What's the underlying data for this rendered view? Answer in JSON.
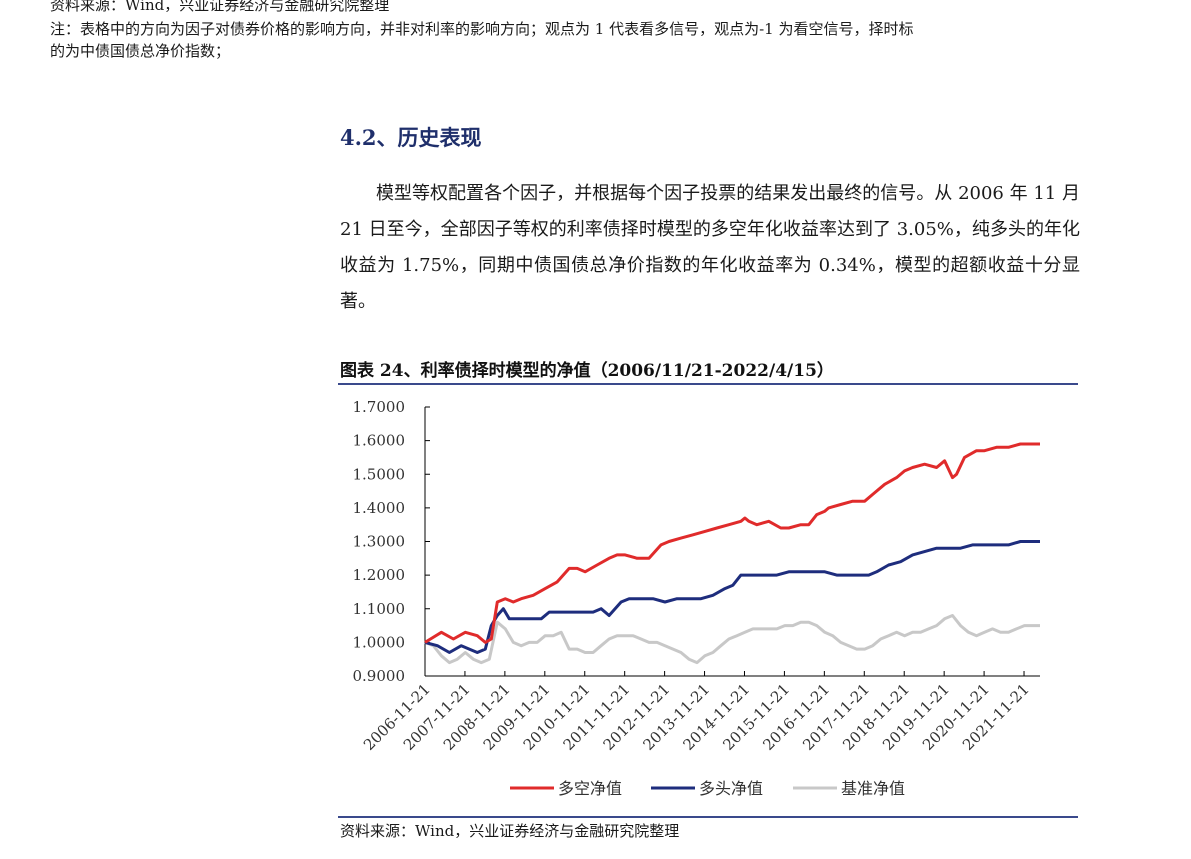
{
  "header": {
    "source_line": "资料来源：Wind，兴业证券经济与金融研究院整理",
    "note_line1": "注：表格中的方向为因子对债券价格的影响方向，并非对利率的影响方向；观点为 1 代表看多信号，观点为-1 为看空信号，择时标",
    "note_line2": "的为中债国债总净价指数；"
  },
  "section": {
    "title": "4.2、历史表现",
    "paragraph": "模型等权配置各个因子，并根据每个因子投票的结果发出最终的信号。从 2006 年 11 月 21 日至今，全部因子等权的利率债择时模型的多空年化收益率达到了 3.05%，纯多头的年化收益为 1.75%，同期中债国债总净价指数的年化收益率为 0.34%，模型的超额收益十分显著。"
  },
  "figure": {
    "title": "图表 24、利率债择时模型的净值（2006/11/21-2022/4/15）",
    "source": "资料来源：Wind，兴业证券经济与金融研究院整理"
  },
  "chart_data": {
    "type": "line",
    "title": "",
    "xlabel": "",
    "ylabel": "",
    "ylim": [
      0.9,
      1.7
    ],
    "y_ticks": [
      "0.9000",
      "1.0000",
      "1.1000",
      "1.2000",
      "1.3000",
      "1.4000",
      "1.5000",
      "1.6000",
      "1.7000"
    ],
    "x_ticks": [
      "2006-11-21",
      "2007-11-21",
      "2008-11-21",
      "2009-11-21",
      "2010-11-21",
      "2011-11-21",
      "2012-11-21",
      "2013-11-21",
      "2014-11-21",
      "2015-11-21",
      "2016-11-21",
      "2017-11-21",
      "2018-11-21",
      "2019-11-21",
      "2020-11-21",
      "2021-11-21"
    ],
    "x_range": [
      2006.89,
      2022.29
    ],
    "grid": false,
    "legend": "bottom",
    "series": [
      {
        "name": "多空净值",
        "color": "#e02b2b",
        "x": [
          2006.89,
          2007.3,
          2007.6,
          2007.9,
          2008.2,
          2008.4,
          2008.55,
          2008.7,
          2008.9,
          2009.1,
          2009.3,
          2009.6,
          2009.9,
          2010.2,
          2010.5,
          2010.7,
          2010.9,
          2011.2,
          2011.5,
          2011.7,
          2011.9,
          2012.2,
          2012.5,
          2012.8,
          2013.0,
          2013.3,
          2013.6,
          2013.9,
          2014.2,
          2014.5,
          2014.8,
          2014.9,
          2015.0,
          2015.2,
          2015.5,
          2015.8,
          2016.0,
          2016.3,
          2016.5,
          2016.7,
          2016.9,
          2017.0,
          2017.3,
          2017.6,
          2017.9,
          2018.1,
          2018.4,
          2018.7,
          2018.9,
          2019.1,
          2019.4,
          2019.7,
          2019.9,
          2020.1,
          2020.2,
          2020.4,
          2020.7,
          2020.9,
          2021.2,
          2021.5,
          2021.8,
          2022.1,
          2022.29
        ],
        "values": [
          1.0,
          1.03,
          1.01,
          1.03,
          1.02,
          1.0,
          1.01,
          1.12,
          1.13,
          1.12,
          1.13,
          1.14,
          1.16,
          1.18,
          1.22,
          1.22,
          1.21,
          1.23,
          1.25,
          1.26,
          1.26,
          1.25,
          1.25,
          1.29,
          1.3,
          1.31,
          1.32,
          1.33,
          1.34,
          1.35,
          1.36,
          1.37,
          1.36,
          1.35,
          1.36,
          1.34,
          1.34,
          1.35,
          1.35,
          1.38,
          1.39,
          1.4,
          1.41,
          1.42,
          1.42,
          1.44,
          1.47,
          1.49,
          1.51,
          1.52,
          1.53,
          1.52,
          1.54,
          1.49,
          1.5,
          1.55,
          1.57,
          1.57,
          1.58,
          1.58,
          1.59,
          1.59,
          1.59
        ]
      },
      {
        "name": "多头净值",
        "color": "#1e2d7d",
        "x": [
          2006.89,
          2007.2,
          2007.5,
          2007.8,
          2008.0,
          2008.2,
          2008.4,
          2008.55,
          2008.7,
          2008.85,
          2009.0,
          2009.2,
          2009.5,
          2009.8,
          2010.0,
          2010.3,
          2010.6,
          2010.9,
          2011.1,
          2011.3,
          2011.5,
          2011.8,
          2012.0,
          2012.3,
          2012.6,
          2012.9,
          2013.2,
          2013.5,
          2013.8,
          2014.1,
          2014.4,
          2014.6,
          2014.8,
          2015.1,
          2015.4,
          2015.7,
          2016.0,
          2016.3,
          2016.6,
          2016.9,
          2017.2,
          2017.5,
          2017.8,
          2018.0,
          2018.2,
          2018.5,
          2018.8,
          2019.1,
          2019.4,
          2019.7,
          2020.0,
          2020.3,
          2020.6,
          2020.9,
          2021.2,
          2021.5,
          2021.8,
          2022.1,
          2022.29
        ],
        "values": [
          1.0,
          0.99,
          0.97,
          0.99,
          0.98,
          0.97,
          0.98,
          1.05,
          1.08,
          1.1,
          1.07,
          1.07,
          1.07,
          1.07,
          1.09,
          1.09,
          1.09,
          1.09,
          1.09,
          1.1,
          1.08,
          1.12,
          1.13,
          1.13,
          1.13,
          1.12,
          1.13,
          1.13,
          1.13,
          1.14,
          1.16,
          1.17,
          1.2,
          1.2,
          1.2,
          1.2,
          1.21,
          1.21,
          1.21,
          1.21,
          1.2,
          1.2,
          1.2,
          1.2,
          1.21,
          1.23,
          1.24,
          1.26,
          1.27,
          1.28,
          1.28,
          1.28,
          1.29,
          1.29,
          1.29,
          1.29,
          1.3,
          1.3,
          1.3
        ]
      },
      {
        "name": "基准净值",
        "color": "#c8c8c8",
        "x": [
          2006.89,
          2007.1,
          2007.3,
          2007.5,
          2007.7,
          2007.9,
          2008.1,
          2008.3,
          2008.5,
          2008.7,
          2008.9,
          2009.1,
          2009.3,
          2009.5,
          2009.7,
          2009.9,
          2010.1,
          2010.3,
          2010.5,
          2010.7,
          2010.9,
          2011.1,
          2011.3,
          2011.5,
          2011.7,
          2011.9,
          2012.1,
          2012.3,
          2012.5,
          2012.7,
          2012.9,
          2013.1,
          2013.3,
          2013.5,
          2013.7,
          2013.9,
          2014.1,
          2014.3,
          2014.5,
          2014.7,
          2014.9,
          2015.1,
          2015.3,
          2015.5,
          2015.7,
          2015.9,
          2016.1,
          2016.3,
          2016.5,
          2016.7,
          2016.9,
          2017.1,
          2017.3,
          2017.5,
          2017.7,
          2017.9,
          2018.1,
          2018.3,
          2018.5,
          2018.7,
          2018.9,
          2019.1,
          2019.3,
          2019.5,
          2019.7,
          2019.9,
          2020.1,
          2020.3,
          2020.5,
          2020.7,
          2020.9,
          2021.1,
          2021.3,
          2021.5,
          2021.7,
          2021.9,
          2022.1,
          2022.29
        ],
        "values": [
          1.0,
          0.99,
          0.96,
          0.94,
          0.95,
          0.97,
          0.95,
          0.94,
          0.95,
          1.06,
          1.04,
          1.0,
          0.99,
          1.0,
          1.0,
          1.02,
          1.02,
          1.03,
          0.98,
          0.98,
          0.97,
          0.97,
          0.99,
          1.01,
          1.02,
          1.02,
          1.02,
          1.01,
          1.0,
          1.0,
          0.99,
          0.98,
          0.97,
          0.95,
          0.94,
          0.96,
          0.97,
          0.99,
          1.01,
          1.02,
          1.03,
          1.04,
          1.04,
          1.04,
          1.04,
          1.05,
          1.05,
          1.06,
          1.06,
          1.05,
          1.03,
          1.02,
          1.0,
          0.99,
          0.98,
          0.98,
          0.99,
          1.01,
          1.02,
          1.03,
          1.02,
          1.03,
          1.03,
          1.04,
          1.05,
          1.07,
          1.08,
          1.05,
          1.03,
          1.02,
          1.03,
          1.04,
          1.03,
          1.03,
          1.04,
          1.05,
          1.05,
          1.05
        ]
      }
    ]
  }
}
